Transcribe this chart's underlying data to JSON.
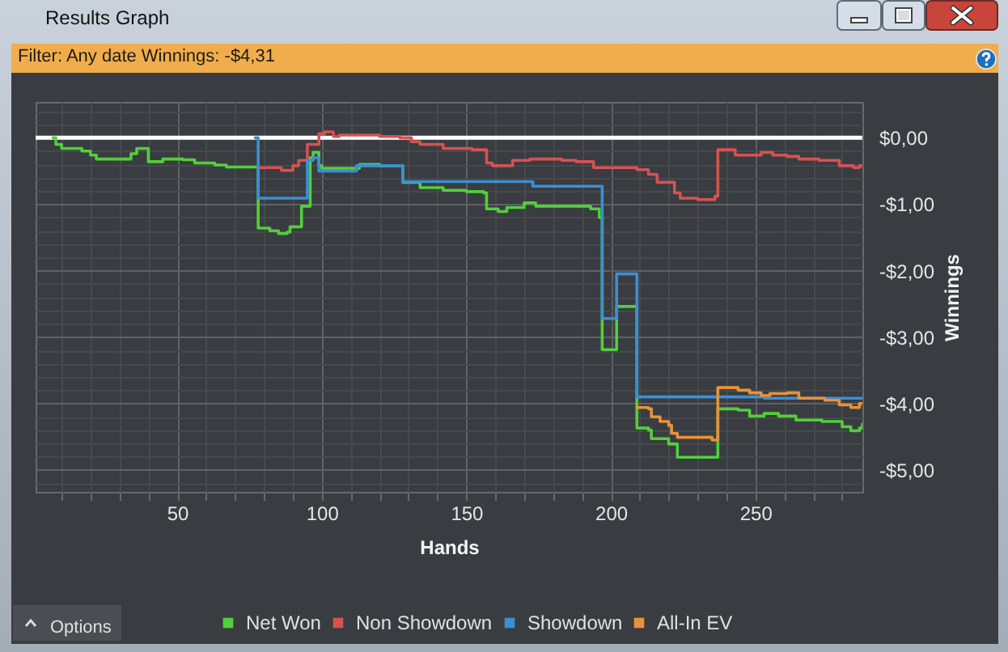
{
  "chart_data": {
    "type": "step",
    "title": "Results Graph",
    "subtitle": "Filter: Any date Winnings: -$4,31",
    "xlabel": "Hands",
    "ylabel": "Winnings",
    "annotations": [
      "Options"
    ],
    "xlim": [
      1,
      287
    ],
    "xticks": [
      {
        "value": 10,
        "label": null
      },
      {
        "value": 20,
        "label": null
      },
      {
        "value": 30,
        "label": null
      },
      {
        "value": 40,
        "label": null
      },
      50,
      {
        "value": 60,
        "label": null
      },
      {
        "value": 70,
        "label": null
      },
      {
        "value": 80,
        "label": null
      },
      {
        "value": 90,
        "label": null
      },
      100,
      {
        "value": 110,
        "label": null
      },
      {
        "value": 120,
        "label": null
      },
      {
        "value": 130,
        "label": null
      },
      {
        "value": 140,
        "label": null
      },
      150,
      {
        "value": 160,
        "label": null
      },
      {
        "value": 170,
        "label": null
      },
      {
        "value": 180,
        "label": null
      },
      {
        "value": 190,
        "label": null
      },
      200,
      {
        "value": 210,
        "label": null
      },
      {
        "value": 220,
        "label": null
      },
      {
        "value": 230,
        "label": null
      },
      {
        "value": 240,
        "label": null
      },
      250,
      {
        "value": 260,
        "label": null
      },
      {
        "value": 270,
        "label": null
      },
      {
        "value": 280,
        "label": null
      }
    ],
    "ylim": [
      -5.33,
      0.54
    ],
    "yticks": [
      {
        "value": 0.4,
        "label": null
      },
      {
        "value": 0.2,
        "label": null
      },
      {
        "value": 0,
        "label": "$0,00"
      },
      {
        "value": -0.2,
        "label": null
      },
      {
        "value": -0.4,
        "label": null
      },
      {
        "value": -0.6,
        "label": null
      },
      {
        "value": -0.8,
        "label": null
      },
      {
        "value": -1,
        "label": "-$1,00"
      },
      {
        "value": -1.2,
        "label": null
      },
      {
        "value": -1.4,
        "label": null
      },
      {
        "value": -1.6,
        "label": null
      },
      {
        "value": -1.8,
        "label": null
      },
      {
        "value": -2,
        "label": "-$2,00"
      },
      {
        "value": -2.2,
        "label": null
      },
      {
        "value": -2.4,
        "label": null
      },
      {
        "value": -2.6,
        "label": null
      },
      {
        "value": -2.8,
        "label": null
      },
      {
        "value": -3,
        "label": "-$3,00"
      },
      {
        "value": -3.2,
        "label": null
      },
      {
        "value": -3.4,
        "label": null
      },
      {
        "value": -3.6,
        "label": null
      },
      {
        "value": -3.8,
        "label": null
      },
      {
        "value": -4,
        "label": "-$4,00"
      },
      {
        "value": -4.2,
        "label": null
      },
      {
        "value": -4.4,
        "label": null
      },
      {
        "value": -4.6,
        "label": null
      },
      {
        "value": -4.8,
        "label": null
      },
      {
        "value": -5,
        "label": "-$5,00"
      },
      {
        "value": -5.2,
        "label": null
      }
    ],
    "grid": true,
    "legend": "bottom",
    "ref_lines": [
      {
        "axis": "y",
        "value": 0,
        "color": "#ffffff"
      }
    ],
    "series": [
      {
        "name": "Net Won",
        "color": "#52cf3a",
        "x": [
          7,
          8,
          10,
          17,
          20,
          22,
          34,
          36,
          40,
          45,
          52,
          56,
          63,
          67,
          78,
          82,
          85,
          88,
          89,
          93,
          96,
          97,
          99,
          100,
          113,
          120,
          128,
          134,
          142,
          150,
          156,
          157,
          161,
          164,
          170,
          174,
          193,
          196,
          197,
          202,
          209,
          213,
          214,
          220,
          223,
          237,
          244,
          248,
          253,
          258,
          264,
          273,
          280,
          283,
          286,
          287
        ],
        "values": [
          0,
          -0.1,
          -0.16,
          -0.2,
          -0.26,
          -0.32,
          -0.24,
          -0.16,
          -0.36,
          -0.32,
          -0.33,
          -0.38,
          -0.41,
          -0.44,
          -1.36,
          -1.4,
          -1.44,
          -1.42,
          -1.34,
          -1.03,
          -0.3,
          -0.22,
          -0.42,
          -0.46,
          -0.4,
          -0.42,
          -0.67,
          -0.75,
          -0.79,
          -0.81,
          -0.83,
          -1.07,
          -1.11,
          -1.05,
          -0.98,
          -1.03,
          -1.07,
          -1.2,
          -3.19,
          -2.54,
          -4.37,
          -4.4,
          -4.53,
          -4.61,
          -4.81,
          -4.08,
          -4.1,
          -4.19,
          -4.15,
          -4.19,
          -4.25,
          -4.27,
          -4.35,
          -4.41,
          -4.37,
          -4.31
        ]
      },
      {
        "name": "Non Showdown",
        "color": "#d65252",
        "x": [
          78,
          86,
          90,
          92,
          95,
          99,
          101,
          104,
          106,
          120,
          127,
          131,
          134,
          142,
          152,
          157,
          159,
          166,
          172,
          183,
          188,
          194,
          209,
          213,
          216,
          222,
          224,
          230,
          236,
          237,
          243,
          252,
          256,
          261,
          265,
          272,
          279,
          284,
          286,
          287
        ],
        "values": [
          -0.45,
          -0.49,
          -0.42,
          -0.34,
          -0.1,
          0.06,
          0.09,
          0.02,
          0.04,
          0.02,
          0,
          -0.06,
          -0.1,
          -0.16,
          -0.18,
          -0.38,
          -0.42,
          -0.34,
          -0.32,
          -0.34,
          -0.36,
          -0.45,
          -0.48,
          -0.55,
          -0.67,
          -0.83,
          -0.91,
          -0.93,
          -0.88,
          -0.18,
          -0.26,
          -0.22,
          -0.26,
          -0.28,
          -0.32,
          -0.34,
          -0.42,
          -0.45,
          -0.42,
          -0.42
        ]
      },
      {
        "name": "Showdown",
        "color": "#3b8fd4",
        "x": [
          77,
          78,
          95,
          97,
          99,
          112,
          128,
          173,
          197,
          202,
          209,
          253,
          287
        ],
        "values": [
          0,
          -0.91,
          -0.34,
          -0.3,
          -0.5,
          -0.42,
          -0.66,
          -0.73,
          -2.72,
          -2.05,
          -3.9,
          -3.92,
          -3.92
        ]
      },
      {
        "name": "All-In EV",
        "color": "#e8923a",
        "x": [
          209,
          213,
          214,
          217,
          220,
          221,
          223,
          235,
          237,
          244,
          248,
          252,
          255,
          261,
          265,
          274,
          279,
          283,
          286,
          287
        ],
        "values": [
          -4.06,
          -4.08,
          -4.2,
          -4.27,
          -4.33,
          -4.45,
          -4.51,
          -4.55,
          -3.76,
          -3.8,
          -3.84,
          -3.88,
          -3.85,
          -3.84,
          -3.92,
          -3.95,
          -4.02,
          -4.06,
          -4.0,
          -4.0
        ]
      }
    ]
  }
}
